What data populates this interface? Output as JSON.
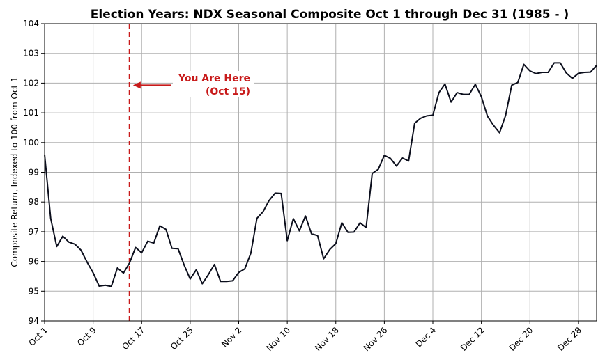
{
  "chart_data": {
    "type": "line",
    "title": "Election Years: NDX Seasonal Composite Oct 1 through Dec 31 (1985 - )",
    "xlabel": "",
    "ylabel": "Composite Return, Indexed to 100 from Oct 1",
    "ylim": [
      94,
      104
    ],
    "yticks": [
      94,
      95,
      96,
      97,
      98,
      99,
      100,
      101,
      102,
      103,
      104
    ],
    "xlim": [
      "Oct 1",
      "Dec 31"
    ],
    "xticks": [
      "Oct 1",
      "Oct 9",
      "Oct 17",
      "Oct 25",
      "Nov 2",
      "Nov 10",
      "Nov 18",
      "Nov 26",
      "Dec 4",
      "Dec 12",
      "Dec 20",
      "Dec 28"
    ],
    "grid": true,
    "line_color": "#0b0e1c",
    "series": [
      {
        "name": "",
        "x": [
          "Oct 1",
          "Oct 2",
          "Oct 3",
          "Oct 4",
          "Oct 5",
          "Oct 6",
          "Oct 7",
          "Oct 8",
          "Oct 9",
          "Oct 10",
          "Oct 11",
          "Oct 12",
          "Oct 13",
          "Oct 14",
          "Oct 15",
          "Oct 16",
          "Oct 17",
          "Oct 18",
          "Oct 19",
          "Oct 20",
          "Oct 21",
          "Oct 22",
          "Oct 23",
          "Oct 24",
          "Oct 25",
          "Oct 26",
          "Oct 27",
          "Oct 28",
          "Oct 29",
          "Oct 30",
          "Oct 31",
          "Nov 1",
          "Nov 2",
          "Nov 3",
          "Nov 4",
          "Nov 5",
          "Nov 6",
          "Nov 7",
          "Nov 8",
          "Nov 9",
          "Nov 10",
          "Nov 11",
          "Nov 12",
          "Nov 13",
          "Nov 14",
          "Nov 15",
          "Nov 16",
          "Nov 17",
          "Nov 18",
          "Nov 19",
          "Nov 20",
          "Nov 21",
          "Nov 22",
          "Nov 23",
          "Nov 24",
          "Nov 25",
          "Nov 26",
          "Nov 27",
          "Nov 28",
          "Nov 29",
          "Nov 30",
          "Dec 1",
          "Dec 2",
          "Dec 3",
          "Dec 4",
          "Dec 5",
          "Dec 6",
          "Dec 7",
          "Dec 8",
          "Dec 9",
          "Dec 10",
          "Dec 11",
          "Dec 12",
          "Dec 13",
          "Dec 14",
          "Dec 15",
          "Dec 16",
          "Dec 17",
          "Dec 18",
          "Dec 19",
          "Dec 20",
          "Dec 21",
          "Dec 22",
          "Dec 23",
          "Dec 24",
          "Dec 25",
          "Dec 26",
          "Dec 27",
          "Dec 28",
          "Dec 29",
          "Dec 30",
          "Dec 31"
        ],
        "values": [
          99.6,
          97.45,
          96.5,
          96.85,
          96.65,
          96.58,
          96.38,
          95.98,
          95.62,
          95.17,
          95.2,
          95.16,
          95.78,
          95.61,
          95.95,
          96.47,
          96.29,
          96.68,
          96.62,
          97.2,
          97.08,
          96.44,
          96.43,
          95.88,
          95.41,
          95.72,
          95.25,
          95.56,
          95.9,
          95.33,
          95.33,
          95.35,
          95.63,
          95.75,
          96.28,
          97.45,
          97.67,
          98.05,
          98.3,
          98.29,
          96.7,
          97.44,
          97.03,
          97.53,
          96.93,
          96.87,
          96.09,
          96.4,
          96.6,
          97.3,
          96.98,
          96.99,
          97.3,
          97.14,
          98.96,
          99.1,
          99.57,
          99.47,
          99.21,
          99.48,
          99.38,
          100.65,
          100.82,
          100.9,
          100.92,
          101.68,
          101.97,
          101.36,
          101.68,
          101.62,
          101.62,
          101.96,
          101.54,
          100.89,
          100.58,
          100.33,
          100.92,
          101.93,
          102.02,
          102.63,
          102.41,
          102.32,
          102.36,
          102.36,
          102.68,
          102.68,
          102.34,
          102.16,
          102.33,
          102.36,
          102.37,
          102.6
        ]
      }
    ],
    "marker": {
      "x": "Oct 15",
      "color": "#c81a1a",
      "style": "dashed"
    },
    "annotation": {
      "line1": "You Are Here",
      "line2": "(Oct 15)",
      "color": "#c81a1a",
      "arrow_y": 101.93
    }
  }
}
